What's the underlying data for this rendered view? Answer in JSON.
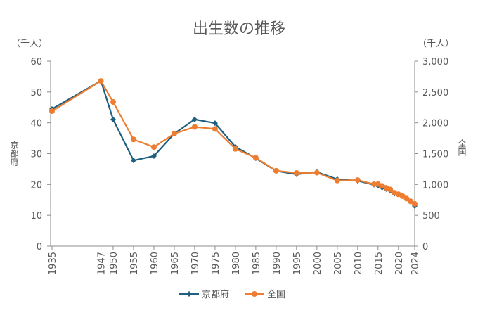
{
  "chart_data": {
    "type": "line",
    "title": "出生数の推移",
    "y_left": {
      "label": "京都府",
      "unit": "（千人）",
      "range": [
        0,
        60
      ],
      "ticks": [
        0,
        10,
        20,
        30,
        40,
        50,
        60
      ]
    },
    "y_right": {
      "label": "全国",
      "unit": "（千人）",
      "range": [
        0,
        3000
      ],
      "ticks": [
        0,
        500,
        1000,
        1500,
        2000,
        2500,
        3000
      ],
      "tick_labels": [
        "0",
        "500",
        "1,000",
        "1,500",
        "2,000",
        "2,500",
        "3,000"
      ]
    },
    "x_tick_labels": [
      "1935",
      "1947",
      "1950",
      "1955",
      "1960",
      "1965",
      "1970",
      "1975",
      "1980",
      "1985",
      "1990",
      "1995",
      "2000",
      "2005",
      "2010",
      "2015",
      "2020",
      "2024"
    ],
    "x": [
      1935,
      1947,
      1950,
      1955,
      1960,
      1965,
      1970,
      1975,
      1980,
      1985,
      1990,
      1995,
      2000,
      2005,
      2010,
      2014,
      2015,
      2016,
      2017,
      2018,
      2019,
      2020,
      2021,
      2022,
      2023,
      2024
    ],
    "series": [
      {
        "name": "京都府",
        "axis": "left",
        "color": "#1f5f7f",
        "marker": "diamond",
        "values": [
          44.5,
          53.6,
          41.1,
          27.8,
          29.2,
          36.5,
          41.1,
          39.9,
          32.2,
          28.5,
          24.4,
          23.3,
          24.0,
          21.7,
          21.2,
          19.9,
          19.6,
          19.0,
          18.5,
          18.0,
          17.0,
          16.8,
          16.3,
          15.4,
          14.5,
          13.0
        ]
      },
      {
        "name": "全国",
        "axis": "right",
        "color": "#ed7d31",
        "marker": "circle",
        "values": [
          2190,
          2679,
          2338,
          1731,
          1606,
          1824,
          1934,
          1901,
          1577,
          1432,
          1222,
          1187,
          1191,
          1063,
          1071,
          1004,
          1006,
          977,
          946,
          918,
          865,
          841,
          812,
          771,
          727,
          686
        ]
      }
    ],
    "legend": "bottom",
    "grid": false
  }
}
